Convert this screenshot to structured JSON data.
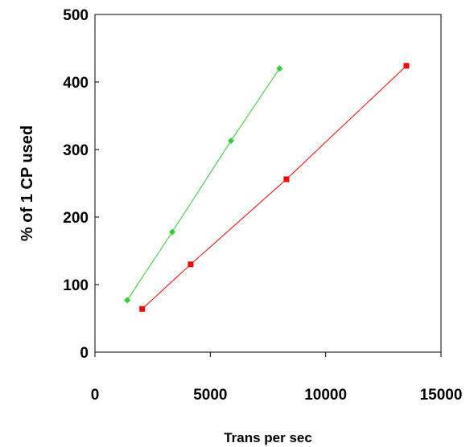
{
  "chart_data": {
    "type": "scatter",
    "title": "",
    "xlabel": "Trans per sec",
    "ylabel": "% of 1 CP used",
    "xlim": [
      0,
      15000
    ],
    "ylim": [
      0,
      500
    ],
    "x_ticks": [
      "0",
      "5000",
      "10000",
      "15000"
    ],
    "y_ticks": [
      "0",
      "100",
      "200",
      "300",
      "400",
      "500"
    ],
    "x_tick_values": [
      0,
      5000,
      10000,
      15000
    ],
    "y_tick_values": [
      0,
      100,
      200,
      300,
      400,
      500
    ],
    "grid": false,
    "legend": "none",
    "series": [
      {
        "color": "#33cc33",
        "marker": "diamond",
        "points": [
          {
            "x": 1400,
            "y": 77
          },
          {
            "x": 3350,
            "y": 178
          },
          {
            "x": 5900,
            "y": 313
          },
          {
            "x": 8000,
            "y": 420
          }
        ]
      },
      {
        "color": "#ff0000",
        "marker": "square",
        "points": [
          {
            "x": 2050,
            "y": 64
          },
          {
            "x": 4150,
            "y": 130
          },
          {
            "x": 8300,
            "y": 256
          },
          {
            "x": 13500,
            "y": 424
          }
        ]
      }
    ]
  }
}
